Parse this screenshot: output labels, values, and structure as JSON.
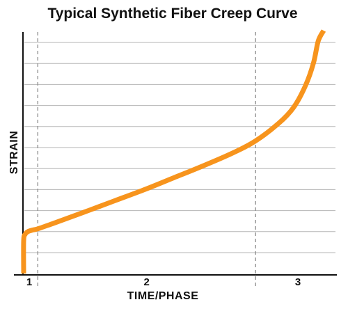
{
  "chart_data": {
    "type": "line",
    "title": "Typical Synthetic Fiber Creep Curve",
    "xlabel": "TIME/PHASE",
    "ylabel": "STRAIN",
    "x_range": [
      0,
      100
    ],
    "y_range": [
      0,
      100
    ],
    "grid": true,
    "phase_boundaries": [
      4.7,
      77.3
    ],
    "phase_labels": [
      "1",
      "2",
      "3"
    ],
    "series": [
      {
        "color": "#f7941d",
        "x": [
          0,
          0,
          0.5,
          1.5,
          3,
          4.7,
          10,
          20,
          30,
          40,
          50,
          60,
          70,
          77.3,
          85,
          90,
          94,
          96.6,
          98.2,
          100
        ],
        "y": [
          0,
          13.5,
          16.2,
          17.3,
          17.9,
          18.4,
          20.7,
          25.2,
          29.8,
          34.4,
          39.4,
          44.4,
          49.8,
          54.6,
          61.8,
          68.4,
          77.5,
          86.6,
          95.7,
          100
        ]
      }
    ],
    "colors": {
      "curve": "#f7941d",
      "grid": "#b5b5b5",
      "dashed": "#8c8c8c",
      "axis": "#111111"
    }
  }
}
